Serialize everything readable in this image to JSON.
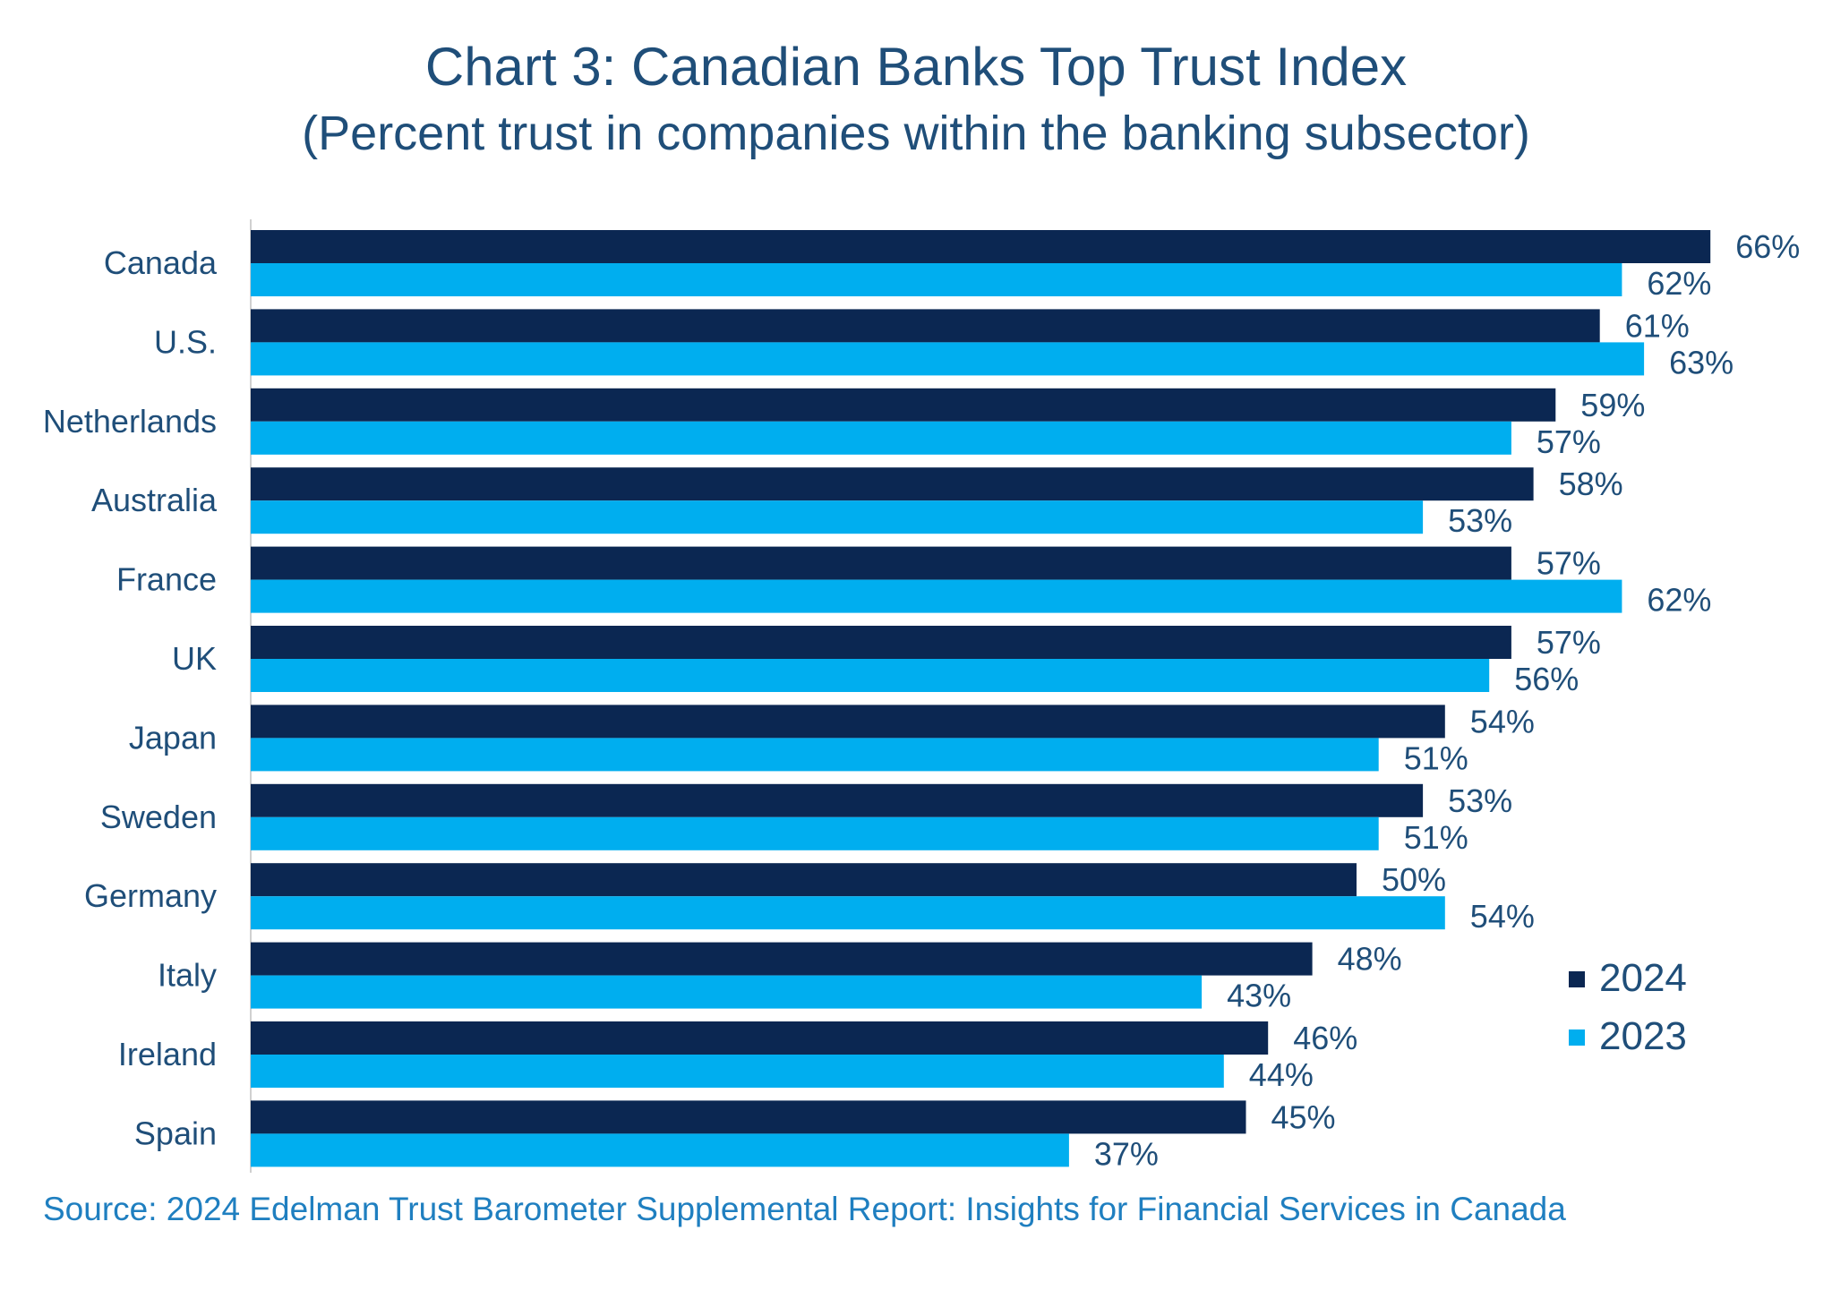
{
  "chart_data": {
    "type": "bar",
    "orientation": "horizontal",
    "title": "Chart 3: Canadian Banks Top Trust Index",
    "subtitle": "(Percent trust in companies within the banking subsector)",
    "categories": [
      "Canada",
      "U.S.",
      "Netherlands",
      "Australia",
      "France",
      "UK",
      "Japan",
      "Sweden",
      "Germany",
      "Italy",
      "Ireland",
      "Spain"
    ],
    "series": [
      {
        "name": "2024",
        "color": "#0b2752",
        "values": [
          66,
          61,
          59,
          58,
          57,
          57,
          54,
          53,
          50,
          48,
          46,
          45
        ]
      },
      {
        "name": "2023",
        "color": "#00aeef",
        "values": [
          62,
          63,
          57,
          53,
          62,
          56,
          51,
          51,
          54,
          43,
          44,
          37
        ]
      }
    ],
    "value_suffix": "%",
    "xlim": [
      0,
      70
    ],
    "grid": false,
    "legend_position": "right"
  },
  "source": "Source: 2024 Edelman Trust Barometer Supplemental Report: Insights for Financial Services in Canada"
}
